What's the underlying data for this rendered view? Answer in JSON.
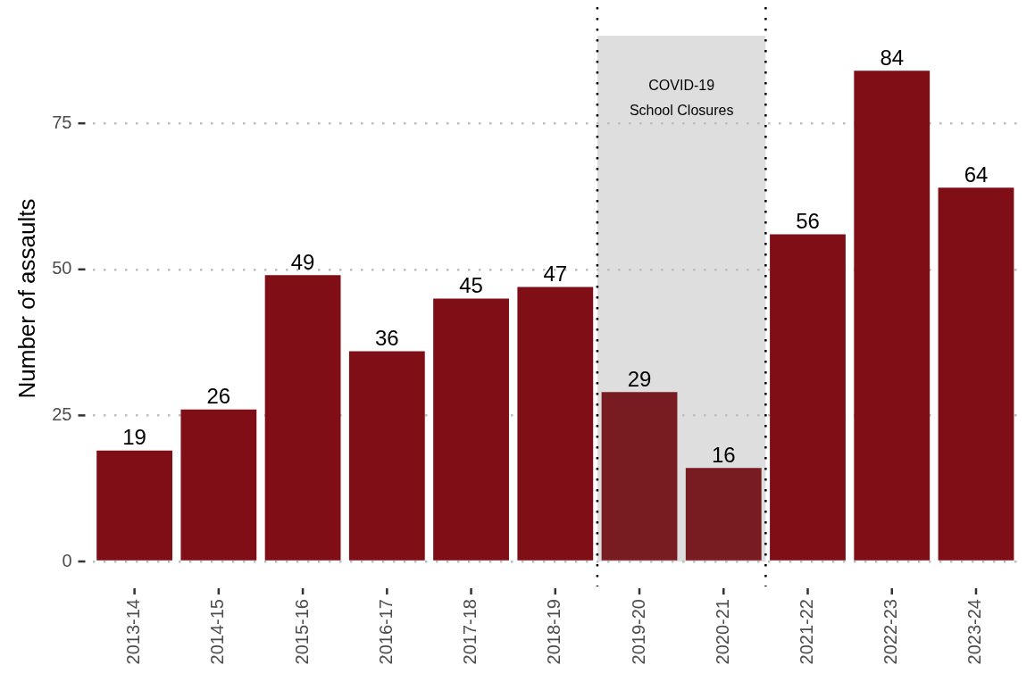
{
  "chart_data": {
    "type": "bar",
    "ylabel": "Number of assaults",
    "categories": [
      "2013-14",
      "2014-15",
      "2015-16",
      "2016-17",
      "2017-18",
      "2018-19",
      "2019-20",
      "2020-21",
      "2021-22",
      "2022-23",
      "2023-24"
    ],
    "values": [
      19,
      26,
      49,
      36,
      45,
      47,
      29,
      16,
      56,
      84,
      64
    ],
    "colors": [
      "#7f0e16",
      "#7f0e16",
      "#7f0e16",
      "#7f0e16",
      "#7f0e16",
      "#7f0e16",
      "#781c22",
      "#781c22",
      "#7f0e16",
      "#7f0e16",
      "#7f0e16"
    ],
    "ylim": [
      0,
      90
    ],
    "yticks": [
      0,
      25,
      50,
      75
    ],
    "grid": "y",
    "data_labels": true,
    "bands": [
      {
        "axis": "x",
        "from": "2019-20",
        "to": "2020-21",
        "label": "COVID-19\nSchool Closures",
        "color": "#dedede"
      }
    ]
  }
}
